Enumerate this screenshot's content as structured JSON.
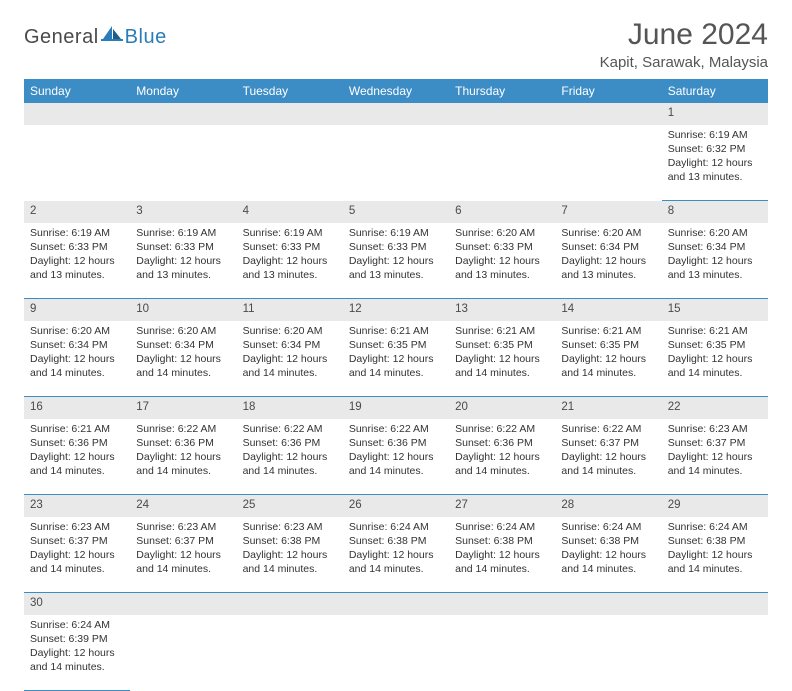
{
  "logo": {
    "general": "General",
    "blue": "Blue"
  },
  "header": {
    "month_year": "June 2024",
    "location": "Kapit, Sarawak, Malaysia"
  },
  "colors": {
    "header_bg": "#3c8dc6",
    "header_text": "#ffffff",
    "daynum_bg": "#e9e9e9",
    "rule": "#3c8dc6",
    "logo_blue": "#2a7db8",
    "text": "#333333"
  },
  "weekdays": [
    "Sunday",
    "Monday",
    "Tuesday",
    "Wednesday",
    "Thursday",
    "Friday",
    "Saturday"
  ],
  "weeks": [
    {
      "nums": [
        "",
        "",
        "",
        "",
        "",
        "",
        "1"
      ],
      "cells": [
        null,
        null,
        null,
        null,
        null,
        null,
        {
          "sr": "Sunrise: 6:19 AM",
          "ss": "Sunset: 6:32 PM",
          "d1": "Daylight: 12 hours",
          "d2": "and 13 minutes."
        }
      ]
    },
    {
      "nums": [
        "2",
        "3",
        "4",
        "5",
        "6",
        "7",
        "8"
      ],
      "cells": [
        {
          "sr": "Sunrise: 6:19 AM",
          "ss": "Sunset: 6:33 PM",
          "d1": "Daylight: 12 hours",
          "d2": "and 13 minutes."
        },
        {
          "sr": "Sunrise: 6:19 AM",
          "ss": "Sunset: 6:33 PM",
          "d1": "Daylight: 12 hours",
          "d2": "and 13 minutes."
        },
        {
          "sr": "Sunrise: 6:19 AM",
          "ss": "Sunset: 6:33 PM",
          "d1": "Daylight: 12 hours",
          "d2": "and 13 minutes."
        },
        {
          "sr": "Sunrise: 6:19 AM",
          "ss": "Sunset: 6:33 PM",
          "d1": "Daylight: 12 hours",
          "d2": "and 13 minutes."
        },
        {
          "sr": "Sunrise: 6:20 AM",
          "ss": "Sunset: 6:33 PM",
          "d1": "Daylight: 12 hours",
          "d2": "and 13 minutes."
        },
        {
          "sr": "Sunrise: 6:20 AM",
          "ss": "Sunset: 6:34 PM",
          "d1": "Daylight: 12 hours",
          "d2": "and 13 minutes."
        },
        {
          "sr": "Sunrise: 6:20 AM",
          "ss": "Sunset: 6:34 PM",
          "d1": "Daylight: 12 hours",
          "d2": "and 13 minutes."
        }
      ]
    },
    {
      "nums": [
        "9",
        "10",
        "11",
        "12",
        "13",
        "14",
        "15"
      ],
      "cells": [
        {
          "sr": "Sunrise: 6:20 AM",
          "ss": "Sunset: 6:34 PM",
          "d1": "Daylight: 12 hours",
          "d2": "and 14 minutes."
        },
        {
          "sr": "Sunrise: 6:20 AM",
          "ss": "Sunset: 6:34 PM",
          "d1": "Daylight: 12 hours",
          "d2": "and 14 minutes."
        },
        {
          "sr": "Sunrise: 6:20 AM",
          "ss": "Sunset: 6:34 PM",
          "d1": "Daylight: 12 hours",
          "d2": "and 14 minutes."
        },
        {
          "sr": "Sunrise: 6:21 AM",
          "ss": "Sunset: 6:35 PM",
          "d1": "Daylight: 12 hours",
          "d2": "and 14 minutes."
        },
        {
          "sr": "Sunrise: 6:21 AM",
          "ss": "Sunset: 6:35 PM",
          "d1": "Daylight: 12 hours",
          "d2": "and 14 minutes."
        },
        {
          "sr": "Sunrise: 6:21 AM",
          "ss": "Sunset: 6:35 PM",
          "d1": "Daylight: 12 hours",
          "d2": "and 14 minutes."
        },
        {
          "sr": "Sunrise: 6:21 AM",
          "ss": "Sunset: 6:35 PM",
          "d1": "Daylight: 12 hours",
          "d2": "and 14 minutes."
        }
      ]
    },
    {
      "nums": [
        "16",
        "17",
        "18",
        "19",
        "20",
        "21",
        "22"
      ],
      "cells": [
        {
          "sr": "Sunrise: 6:21 AM",
          "ss": "Sunset: 6:36 PM",
          "d1": "Daylight: 12 hours",
          "d2": "and 14 minutes."
        },
        {
          "sr": "Sunrise: 6:22 AM",
          "ss": "Sunset: 6:36 PM",
          "d1": "Daylight: 12 hours",
          "d2": "and 14 minutes."
        },
        {
          "sr": "Sunrise: 6:22 AM",
          "ss": "Sunset: 6:36 PM",
          "d1": "Daylight: 12 hours",
          "d2": "and 14 minutes."
        },
        {
          "sr": "Sunrise: 6:22 AM",
          "ss": "Sunset: 6:36 PM",
          "d1": "Daylight: 12 hours",
          "d2": "and 14 minutes."
        },
        {
          "sr": "Sunrise: 6:22 AM",
          "ss": "Sunset: 6:36 PM",
          "d1": "Daylight: 12 hours",
          "d2": "and 14 minutes."
        },
        {
          "sr": "Sunrise: 6:22 AM",
          "ss": "Sunset: 6:37 PM",
          "d1": "Daylight: 12 hours",
          "d2": "and 14 minutes."
        },
        {
          "sr": "Sunrise: 6:23 AM",
          "ss": "Sunset: 6:37 PM",
          "d1": "Daylight: 12 hours",
          "d2": "and 14 minutes."
        }
      ]
    },
    {
      "nums": [
        "23",
        "24",
        "25",
        "26",
        "27",
        "28",
        "29"
      ],
      "cells": [
        {
          "sr": "Sunrise: 6:23 AM",
          "ss": "Sunset: 6:37 PM",
          "d1": "Daylight: 12 hours",
          "d2": "and 14 minutes."
        },
        {
          "sr": "Sunrise: 6:23 AM",
          "ss": "Sunset: 6:37 PM",
          "d1": "Daylight: 12 hours",
          "d2": "and 14 minutes."
        },
        {
          "sr": "Sunrise: 6:23 AM",
          "ss": "Sunset: 6:38 PM",
          "d1": "Daylight: 12 hours",
          "d2": "and 14 minutes."
        },
        {
          "sr": "Sunrise: 6:24 AM",
          "ss": "Sunset: 6:38 PM",
          "d1": "Daylight: 12 hours",
          "d2": "and 14 minutes."
        },
        {
          "sr": "Sunrise: 6:24 AM",
          "ss": "Sunset: 6:38 PM",
          "d1": "Daylight: 12 hours",
          "d2": "and 14 minutes."
        },
        {
          "sr": "Sunrise: 6:24 AM",
          "ss": "Sunset: 6:38 PM",
          "d1": "Daylight: 12 hours",
          "d2": "and 14 minutes."
        },
        {
          "sr": "Sunrise: 6:24 AM",
          "ss": "Sunset: 6:38 PM",
          "d1": "Daylight: 12 hours",
          "d2": "and 14 minutes."
        }
      ]
    },
    {
      "nums": [
        "30",
        "",
        "",
        "",
        "",
        "",
        ""
      ],
      "cells": [
        {
          "sr": "Sunrise: 6:24 AM",
          "ss": "Sunset: 6:39 PM",
          "d1": "Daylight: 12 hours",
          "d2": "and 14 minutes."
        },
        null,
        null,
        null,
        null,
        null,
        null
      ]
    }
  ]
}
